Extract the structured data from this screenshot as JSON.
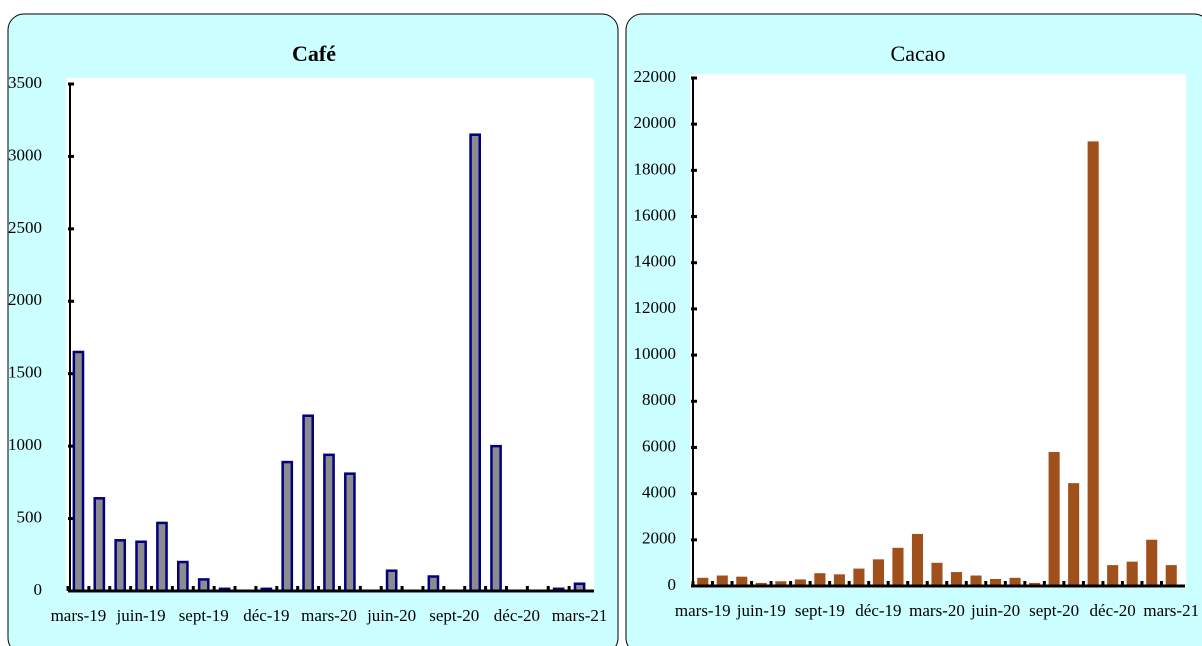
{
  "chart_data": [
    {
      "type": "bar",
      "title": "Café",
      "title_weight": "bold",
      "categories": [
        "mars-19",
        null,
        null,
        "juin-19",
        null,
        null,
        "sept-19",
        null,
        null,
        "déc-19",
        null,
        null,
        "mars-20",
        null,
        null,
        "juin-20",
        null,
        null,
        "sept-20",
        null,
        null,
        "déc-20",
        null,
        null,
        "mars-21"
      ],
      "values": [
        1650,
        640,
        350,
        340,
        470,
        200,
        80,
        15,
        0,
        15,
        890,
        1210,
        940,
        810,
        0,
        140,
        0,
        100,
        0,
        3150,
        1000,
        0,
        0,
        15,
        50
      ],
      "color": "#8c8c8c",
      "edge_color": "#000080",
      "ylim": [
        0,
        3500
      ],
      "yticks": [
        0,
        500,
        1000,
        1500,
        2000,
        2500,
        3000,
        3500
      ]
    },
    {
      "type": "bar",
      "title": "Cacao",
      "title_weight": "normal",
      "categories": [
        "mars-19",
        null,
        null,
        "juin-19",
        null,
        null,
        "sept-19",
        null,
        null,
        "déc-19",
        null,
        null,
        "mars-20",
        null,
        null,
        "juin-20",
        null,
        null,
        "sept-20",
        null,
        null,
        "déc-20",
        null,
        null,
        "mars-21"
      ],
      "values": [
        300,
        400,
        350,
        80,
        150,
        230,
        500,
        450,
        700,
        1100,
        1600,
        2200,
        950,
        550,
        400,
        250,
        300,
        80,
        5750,
        4400,
        19200,
        850,
        1000,
        1950,
        850
      ],
      "color": "#a0501a",
      "edge_color": "#a0501a",
      "ylim": [
        0,
        22000
      ],
      "yticks": [
        0,
        2000,
        4000,
        6000,
        8000,
        10000,
        12000,
        14000,
        16000,
        18000,
        20000,
        22000
      ]
    }
  ]
}
